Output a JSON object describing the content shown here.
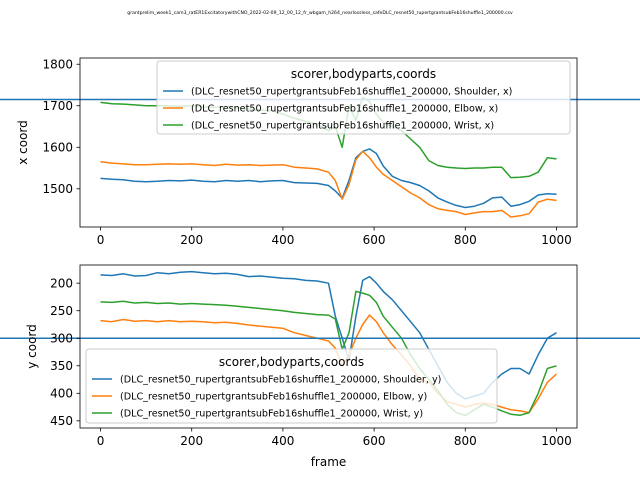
{
  "figure": {
    "suptitle": "grantprelim_week1_cam3_ratER1ExcitatorywithCNO_2022-02-09_12_00_12_fr_wbgam_h264_nearlossless_safeDLC_resnet50_rupertgrantsubFeb16shuffle1_200000.csv"
  },
  "chart_data": [
    {
      "type": "line",
      "title": "",
      "xlabel": "",
      "ylabel": "x coord",
      "xlim": [
        -45,
        1045
      ],
      "ylim": [
        1408,
        1815
      ],
      "y_inverted": false,
      "xticks": [
        0,
        200,
        400,
        600,
        800,
        1000
      ],
      "yticks": [
        1500,
        1600,
        1700,
        1800
      ],
      "x": [
        0,
        25,
        50,
        75,
        100,
        125,
        150,
        175,
        200,
        225,
        250,
        275,
        300,
        325,
        350,
        375,
        400,
        425,
        450,
        475,
        500,
        515,
        530,
        545,
        560,
        575,
        590,
        605,
        620,
        640,
        660,
        680,
        700,
        720,
        740,
        760,
        780,
        800,
        820,
        840,
        860,
        880,
        900,
        920,
        940,
        960,
        980,
        1000
      ],
      "series": [
        {
          "name": "(DLC_resnet50_rupertgrantsubFeb16shuffle1_200000, Shoulder, x)",
          "color": "#1f77b4",
          "values": [
            1525,
            1523,
            1522,
            1518,
            1517,
            1518,
            1520,
            1519,
            1521,
            1518,
            1517,
            1520,
            1518,
            1520,
            1517,
            1519,
            1520,
            1515,
            1514,
            1513,
            1508,
            1495,
            1477,
            1520,
            1575,
            1590,
            1596,
            1585,
            1555,
            1530,
            1520,
            1515,
            1508,
            1495,
            1478,
            1468,
            1460,
            1455,
            1458,
            1465,
            1478,
            1480,
            1458,
            1462,
            1470,
            1485,
            1488,
            1487
          ]
        },
        {
          "name": "(DLC_resnet50_rupertgrantsubFeb16shuffle1_200000, Elbow, x)",
          "color": "#ff7f0e",
          "values": [
            1565,
            1562,
            1560,
            1558,
            1558,
            1559,
            1560,
            1559,
            1560,
            1558,
            1556,
            1559,
            1557,
            1558,
            1556,
            1557,
            1558,
            1552,
            1550,
            1548,
            1540,
            1520,
            1475,
            1510,
            1570,
            1590,
            1575,
            1552,
            1535,
            1520,
            1505,
            1490,
            1478,
            1462,
            1452,
            1448,
            1445,
            1438,
            1442,
            1445,
            1445,
            1448,
            1432,
            1435,
            1440,
            1468,
            1475,
            1472
          ]
        },
        {
          "name": "(DLC_resnet50_rupertgrantsubFeb16shuffle1_200000, Wrist, x)",
          "color": "#2ca02c",
          "values": [
            1708,
            1705,
            1704,
            1702,
            1700,
            1700,
            1700,
            1699,
            1700,
            1697,
            1696,
            1698,
            1695,
            1692,
            1690,
            1688,
            1680,
            1670,
            1662,
            1655,
            1640,
            1650,
            1600,
            1700,
            1665,
            1720,
            1710,
            1680,
            1660,
            1650,
            1640,
            1620,
            1600,
            1568,
            1556,
            1552,
            1550,
            1549,
            1550,
            1550,
            1552,
            1552,
            1527,
            1528,
            1530,
            1540,
            1575,
            1572
          ]
        }
      ],
      "legend": {
        "title": "scorer,bodyparts,coords",
        "placement": "upper right"
      },
      "hline": {
        "y": 1715,
        "color": "#1f77b4"
      }
    },
    {
      "type": "line",
      "title": "",
      "xlabel": "frame",
      "ylabel": "y coord",
      "xlim": [
        -45,
        1045
      ],
      "ylim": [
        463,
        167
      ],
      "y_inverted": true,
      "xticks": [
        0,
        200,
        400,
        600,
        800,
        1000
      ],
      "yticks": [
        200,
        250,
        300,
        350,
        400,
        450
      ],
      "x": [
        0,
        25,
        50,
        75,
        100,
        125,
        150,
        175,
        200,
        225,
        250,
        275,
        300,
        325,
        350,
        375,
        400,
        425,
        450,
        475,
        500,
        515,
        530,
        545,
        560,
        575,
        590,
        605,
        620,
        640,
        660,
        680,
        700,
        720,
        740,
        760,
        780,
        800,
        820,
        840,
        860,
        880,
        900,
        920,
        940,
        960,
        980,
        1000
      ],
      "series": [
        {
          "name": "(DLC_resnet50_rupertgrantsubFeb16shuffle1_200000, Shoulder, y)",
          "color": "#1f77b4",
          "values": [
            185,
            186,
            183,
            187,
            186,
            181,
            183,
            180,
            179,
            181,
            183,
            182,
            184,
            188,
            187,
            189,
            191,
            192,
            195,
            196,
            200,
            260,
            300,
            340,
            260,
            195,
            188,
            200,
            215,
            230,
            250,
            270,
            290,
            320,
            350,
            380,
            400,
            410,
            405,
            400,
            380,
            365,
            355,
            355,
            365,
            330,
            300,
            290
          ]
        },
        {
          "name": "(DLC_resnet50_rupertgrantsubFeb16shuffle1_200000, Elbow, y)",
          "color": "#ff7f0e",
          "values": [
            268,
            270,
            266,
            269,
            268,
            270,
            268,
            270,
            269,
            270,
            272,
            271,
            273,
            276,
            278,
            280,
            282,
            290,
            295,
            300,
            305,
            318,
            350,
            330,
            300,
            275,
            258,
            270,
            290,
            312,
            330,
            350,
            375,
            380,
            400,
            415,
            420,
            425,
            420,
            418,
            420,
            425,
            430,
            432,
            435,
            410,
            380,
            365
          ]
        },
        {
          "name": "(DLC_resnet50_rupertgrantsubFeb16shuffle1_200000, Wrist, y)",
          "color": "#2ca02c",
          "values": [
            234,
            235,
            233,
            236,
            235,
            237,
            236,
            238,
            237,
            238,
            239,
            240,
            242,
            244,
            246,
            248,
            250,
            253,
            255,
            257,
            258,
            265,
            320,
            290,
            215,
            218,
            222,
            235,
            260,
            280,
            300,
            330,
            355,
            375,
            395,
            420,
            435,
            440,
            430,
            420,
            425,
            432,
            438,
            440,
            435,
            400,
            355,
            350
          ]
        }
      ],
      "legend": {
        "title": "scorer,bodyparts,coords",
        "placement": "lower left"
      },
      "hline": {
        "y": 300,
        "color": "#1f77b4"
      }
    }
  ]
}
